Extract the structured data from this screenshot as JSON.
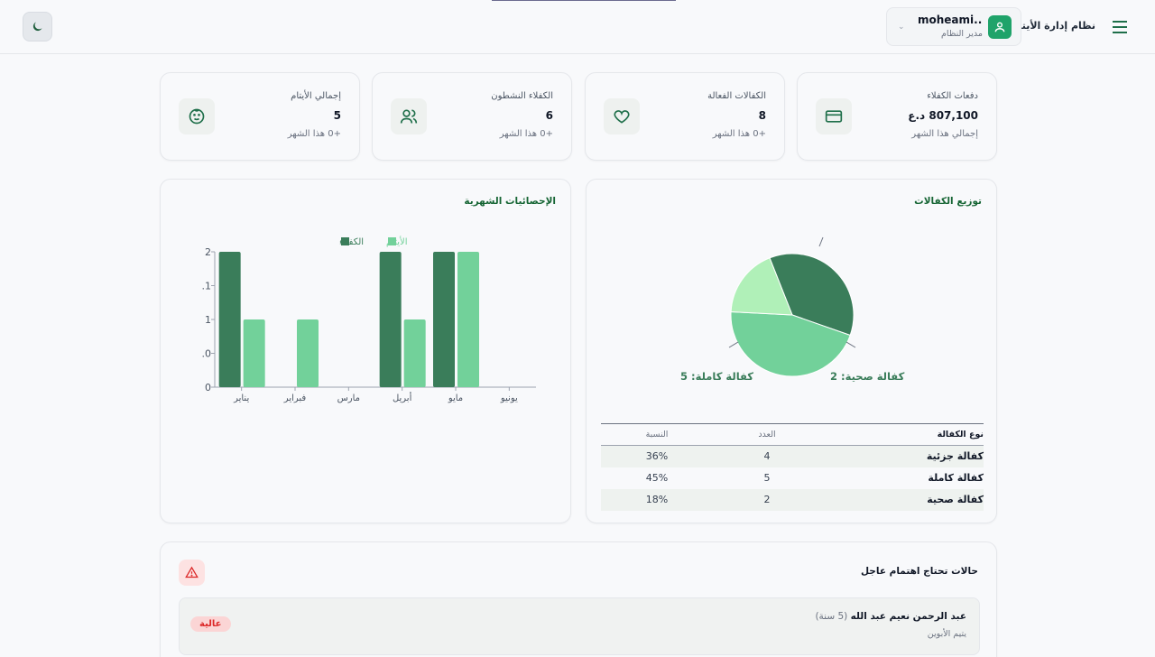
{
  "header": {
    "app_title": "نظام إدارة الأيتام",
    "user_name": "moheami...",
    "user_role": "مدير النظام"
  },
  "stats": [
    {
      "label": "دفعات الكفلاء",
      "value": "807,100 د.ع",
      "sub": "إجمالي هذا الشهر",
      "icon": "credit-card-icon"
    },
    {
      "label": "الكفالات الفعالة",
      "value": "8",
      "sub": "+0 هذا الشهر",
      "icon": "heart-icon"
    },
    {
      "label": "الكفلاء النشطون",
      "value": "6",
      "sub": "+0 هذا الشهر",
      "icon": "users-icon"
    },
    {
      "label": "إجمالي الأيتام",
      "value": "5",
      "sub": "+0 هذا الشهر",
      "icon": "baby-face-icon"
    }
  ],
  "distribution": {
    "title": "توزيع الكفالات",
    "pie_labels": {
      "full": "كفالة كاملة: 5",
      "health": "كفالة صحية: 2"
    },
    "table_headers": {
      "type": "نوع الكفالة",
      "count": "العدد",
      "pct": "النسبة"
    },
    "rows": [
      {
        "name": "كفالة جزئية",
        "count": "4",
        "pct": "36%"
      },
      {
        "name": "كفالة كاملة",
        "count": "5",
        "pct": "45%"
      },
      {
        "name": "كفالة صحية",
        "count": "2",
        "pct": "18%"
      }
    ]
  },
  "monthly": {
    "title": "الإحصائيات الشهرية"
  },
  "urgent": {
    "title": "حالات تحتاج اهتمام عاجل",
    "case_name": "عبد الرحمن نعيم عبد الله",
    "case_age": "(5 سنة)",
    "case_status": "يتيم الأبوين",
    "case_badge": "عالية"
  },
  "colors": {
    "dark_green": "#3a7d5a",
    "mid_green": "#72d19a",
    "light_green": "#b0f0b8",
    "brand": "#1fa36a",
    "danger": "#dc2626"
  },
  "chart_data": [
    {
      "type": "bar",
      "title": "الإحصائيات الشهرية",
      "categories": [
        "يناير",
        "فبراير",
        "مارس",
        "أبريل",
        "مايو",
        "يونيو"
      ],
      "series": [
        {
          "name": "الكفلاء",
          "values": [
            2,
            0,
            0,
            2,
            2,
            0
          ],
          "color": "#3a7d5a"
        },
        {
          "name": "الأيتام",
          "values": [
            1,
            1,
            0,
            1,
            2,
            0
          ],
          "color": "#72d19a"
        }
      ],
      "ylim": [
        0,
        2
      ],
      "yticks": [
        "0",
        "0.",
        "1",
        "1.",
        "2"
      ],
      "legend": "top"
    },
    {
      "type": "pie",
      "title": "توزيع الكفالات",
      "labels": [
        "كفالة جزئية",
        "كفالة كاملة",
        "كفالة صحية"
      ],
      "values": [
        4,
        5,
        2
      ],
      "colors": [
        "#3a7d5a",
        "#72d19a",
        "#b0f0b8"
      ]
    }
  ]
}
